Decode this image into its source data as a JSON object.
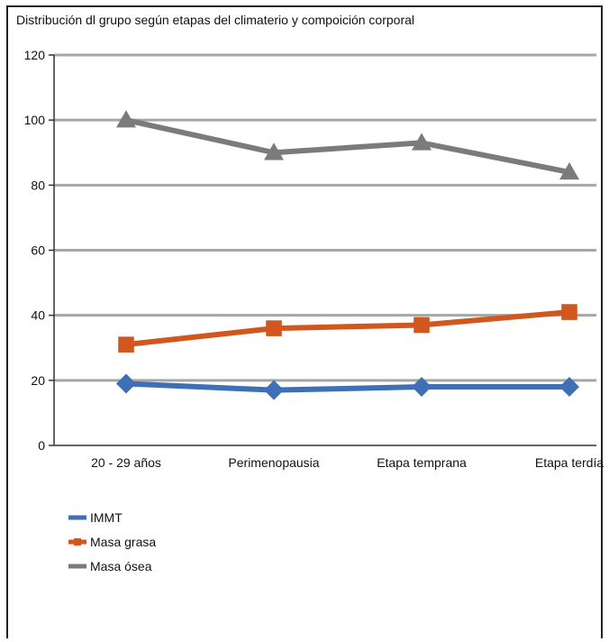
{
  "chart_data": {
    "type": "line",
    "title": "Distribución dl grupo según etapas del climaterio y compoición corporal",
    "categories": [
      "20 - 29 años",
      "Perimenopausia",
      "Etapa temprana",
      "Etapa terdía"
    ],
    "ylim": [
      0,
      120
    ],
    "yticks": [
      0,
      20,
      40,
      60,
      80,
      100,
      120
    ],
    "grid": true,
    "legend_position": "bottom-left",
    "series": [
      {
        "name": "IMMT",
        "values": [
          19,
          17,
          18,
          18
        ],
        "color": "#3f6fb4",
        "marker": "diamond"
      },
      {
        "name": "Masa grasa",
        "values": [
          31,
          36,
          37,
          41
        ],
        "color": "#d2571e",
        "marker": "square"
      },
      {
        "name": "Masa ósea",
        "values": [
          100,
          90,
          93,
          84
        ],
        "color": "#7b7b7b",
        "marker": "triangle"
      }
    ]
  }
}
